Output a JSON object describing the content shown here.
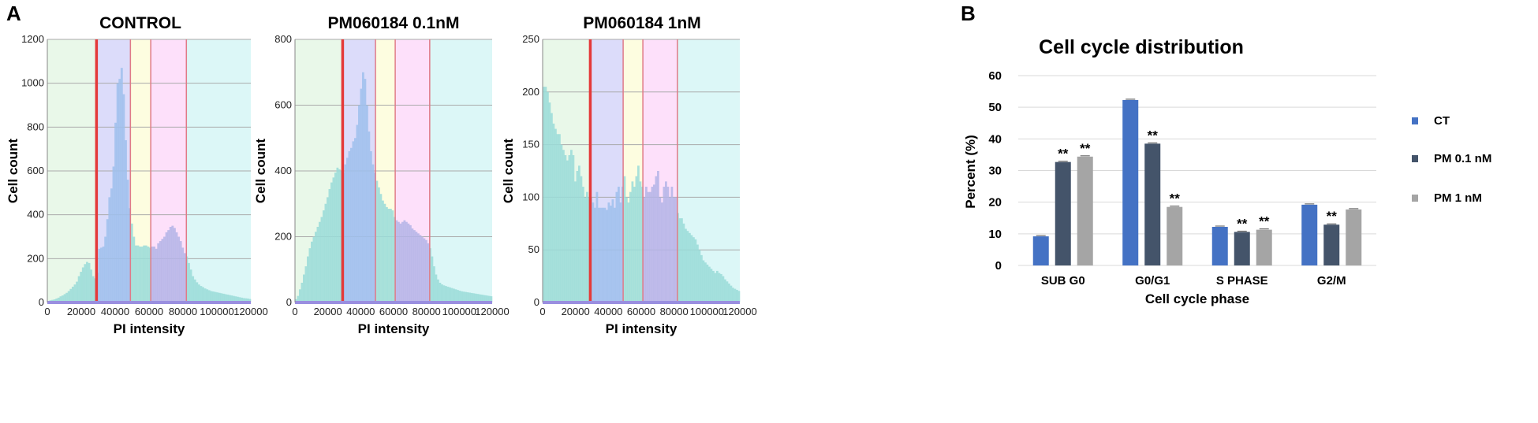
{
  "panels": {
    "a": "A",
    "b": "B"
  },
  "colors": {
    "gate_subg0": "#e9f8e9",
    "gate_g0g1": "#dcdcfa",
    "gate_s": "#fdfde0",
    "gate_g2m": "#fde0fa",
    "gate_over": "#dcf7f7",
    "gate_line": "#e07a88",
    "marker_line": "#e43a3a",
    "hist_fill_low": "#9adcd8",
    "hist_fill_mid": "#9fc0ec",
    "hist_fill_high": "#b4b4e6",
    "ct": "#4472c4",
    "pm01": "#44546a",
    "pm1": "#a5a5a5"
  },
  "chart_data": [
    {
      "type": "bar",
      "subtype": "histogram",
      "title": "CONTROL",
      "xlabel": "PI intensity",
      "ylabel": "Cell count",
      "xlim": [
        0,
        120000
      ],
      "ylim": [
        0,
        1200
      ],
      "xticks": [
        "0",
        "20000",
        "40000",
        "60000",
        "80000",
        "100000",
        "120000"
      ],
      "yticks": [
        "0",
        "200",
        "400",
        "600",
        "800",
        "1000",
        "1200"
      ],
      "gates": [
        29000,
        49000,
        61000,
        82000
      ],
      "marker": 29000,
      "values": [
        5,
        10,
        12,
        14,
        18,
        22,
        28,
        32,
        38,
        44,
        52,
        62,
        72,
        82,
        95,
        120,
        140,
        160,
        175,
        185,
        180,
        150,
        120,
        110,
        135,
        245,
        250,
        255,
        300,
        380,
        480,
        520,
        620,
        820,
        1000,
        1020,
        1070,
        950,
        740,
        560,
        430,
        360,
        300,
        260,
        260,
        255,
        255,
        260,
        260,
        255,
        250,
        255,
        255,
        245,
        270,
        280,
        290,
        300,
        320,
        330,
        345,
        350,
        340,
        320,
        300,
        280,
        250,
        225,
        210,
        180,
        150,
        120,
        105,
        92,
        82,
        75,
        70,
        64,
        60,
        56,
        52,
        50,
        48,
        46,
        44,
        42,
        40,
        38,
        36,
        34,
        32,
        30,
        28,
        26,
        24,
        22,
        20,
        19,
        18,
        16
      ]
    },
    {
      "type": "bar",
      "subtype": "histogram",
      "title": "PM060184 0.1nM",
      "xlabel": "PI intensity",
      "ylabel": "Cell count",
      "xlim": [
        0,
        120000
      ],
      "ylim": [
        0,
        800
      ],
      "xticks": [
        "0",
        "20000",
        "40000",
        "60000",
        "80000",
        "100000",
        "120000"
      ],
      "yticks": [
        "0",
        "200",
        "400",
        "600",
        "800"
      ],
      "gates": [
        29000,
        49000,
        61000,
        82000
      ],
      "marker": 29000,
      "values": [
        10,
        20,
        40,
        60,
        85,
        110,
        140,
        165,
        185,
        200,
        215,
        230,
        245,
        260,
        280,
        300,
        320,
        345,
        365,
        380,
        395,
        410,
        405,
        400,
        395,
        420,
        440,
        460,
        470,
        490,
        500,
        540,
        600,
        650,
        700,
        680,
        600,
        520,
        460,
        420,
        395,
        370,
        350,
        330,
        310,
        300,
        290,
        285,
        285,
        280,
        260,
        250,
        245,
        240,
        245,
        250,
        245,
        240,
        235,
        225,
        220,
        215,
        210,
        205,
        200,
        195,
        190,
        180,
        165,
        140,
        110,
        85,
        70,
        60,
        55,
        52,
        50,
        48,
        46,
        44,
        42,
        40,
        38,
        36,
        34,
        33,
        32,
        31,
        30,
        29,
        28,
        27,
        26,
        25,
        24,
        23,
        22,
        21,
        20,
        19
      ]
    },
    {
      "type": "bar",
      "subtype": "histogram",
      "title": "PM060184 1nM",
      "xlabel": "PI intensity",
      "ylabel": "Cell count",
      "xlim": [
        0,
        120000
      ],
      "ylim": [
        0,
        250
      ],
      "xticks": [
        "0",
        "20000",
        "40000",
        "60000",
        "80000",
        "100000",
        "120000"
      ],
      "yticks": [
        "0",
        "50",
        "100",
        "150",
        "200",
        "250"
      ],
      "gates": [
        29000,
        49000,
        61000,
        82000
      ],
      "marker": 29000,
      "values": [
        205,
        205,
        200,
        190,
        180,
        170,
        165,
        160,
        160,
        150,
        145,
        140,
        135,
        140,
        145,
        140,
        115,
        125,
        130,
        120,
        110,
        100,
        105,
        100,
        100,
        95,
        90,
        105,
        90,
        90,
        90,
        90,
        88,
        95,
        92,
        98,
        90,
        105,
        110,
        95,
        110,
        120,
        100,
        95,
        105,
        115,
        110,
        120,
        130,
        115,
        110,
        100,
        110,
        105,
        105,
        110,
        112,
        120,
        125,
        100,
        95,
        110,
        115,
        110,
        100,
        110,
        100,
        100,
        85,
        80,
        80,
        75,
        70,
        68,
        66,
        64,
        62,
        60,
        55,
        50,
        45,
        40,
        38,
        36,
        34,
        32,
        30,
        28,
        30,
        28,
        27,
        25,
        22,
        20,
        18,
        16,
        14,
        13,
        12,
        11
      ]
    },
    {
      "type": "bar",
      "title": "Cell cycle distribution",
      "xlabel": "Cell cycle phase",
      "ylabel": "Percent (%)",
      "ylim": [
        0,
        60
      ],
      "yticks": [
        "0",
        "10",
        "20",
        "30",
        "40",
        "50",
        "60"
      ],
      "categories": [
        "SUB G0",
        "G0/G1",
        "S PHASE",
        "G2/M"
      ],
      "series": [
        {
          "name": "CT",
          "values": [
            9.2,
            52.3,
            12.2,
            19.2
          ],
          "sig": [
            "",
            "",
            "",
            ""
          ]
        },
        {
          "name": "PM 0.1 nM",
          "values": [
            32.7,
            38.5,
            10.6,
            12.9
          ],
          "sig": [
            "**",
            "**",
            "**",
            "**"
          ]
        },
        {
          "name": "PM 1 nM",
          "values": [
            34.4,
            18.5,
            11.3,
            17.7
          ],
          "sig": [
            "**",
            "**",
            "**",
            ""
          ]
        }
      ]
    }
  ]
}
